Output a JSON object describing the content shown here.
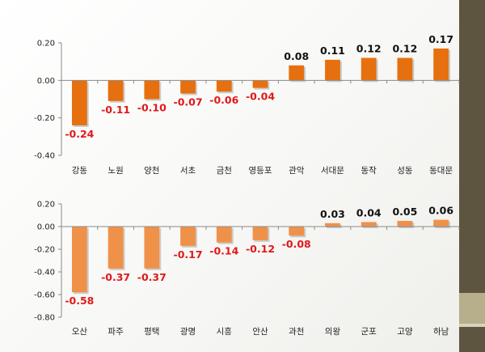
{
  "chart_data": [
    {
      "type": "bar",
      "categories": [
        "강동",
        "노원",
        "양천",
        "서초",
        "금천",
        "영등포",
        "관악",
        "서대문",
        "동작",
        "성동",
        "동대문"
      ],
      "values": [
        -0.24,
        -0.11,
        -0.1,
        -0.07,
        -0.06,
        -0.04,
        0.08,
        0.11,
        0.12,
        0.12,
        0.17
      ],
      "value_labels": [
        "-0.24",
        "-0.11",
        "-0.10",
        "-0.07",
        "-0.06",
        "-0.04",
        "0.08",
        "0.11",
        "0.12",
        "0.12",
        "0.17"
      ],
      "ylim": [
        -0.4,
        0.2
      ],
      "yticks": [
        0.2,
        0.0,
        -0.2,
        -0.4
      ],
      "ytick_labels": [
        "0.20",
        "0.00",
        "-0.20",
        "-0.40"
      ],
      "grid": false,
      "colors": {
        "bar": "#e6700f",
        "negative_label": "#e0191b",
        "positive_label": "#111111"
      }
    },
    {
      "type": "bar",
      "categories": [
        "오산",
        "파주",
        "평택",
        "광명",
        "시흥",
        "안산",
        "과천",
        "의왕",
        "군포",
        "고양",
        "하남"
      ],
      "values": [
        -0.58,
        -0.37,
        -0.37,
        -0.17,
        -0.14,
        -0.12,
        -0.08,
        0.03,
        0.04,
        0.05,
        0.06
      ],
      "value_labels": [
        "-0.58",
        "-0.37",
        "-0.37",
        "-0.17",
        "-0.14",
        "-0.12",
        "-0.08",
        "0.03",
        "0.04",
        "0.05",
        "0.06"
      ],
      "ylim": [
        -0.8,
        0.2
      ],
      "yticks": [
        0.2,
        0.0,
        -0.2,
        -0.4,
        -0.6,
        -0.8
      ],
      "ytick_labels": [
        "0.20",
        "0.00",
        "-0.20",
        "-0.40",
        "-0.60",
        "-0.80"
      ],
      "grid": false,
      "colors": {
        "bar": "#f0914a",
        "negative_label": "#e0191b",
        "positive_label": "#111111"
      }
    }
  ]
}
